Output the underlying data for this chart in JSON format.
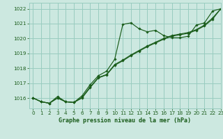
{
  "xlabel": "Graphe pression niveau de la mer (hPa)",
  "xlim": [
    -0.5,
    23
  ],
  "ylim": [
    1015.3,
    1022.4
  ],
  "yticks": [
    1016,
    1017,
    1018,
    1019,
    1020,
    1021,
    1022
  ],
  "xticks": [
    0,
    1,
    2,
    3,
    4,
    5,
    6,
    7,
    8,
    9,
    10,
    11,
    12,
    13,
    14,
    15,
    16,
    17,
    18,
    19,
    20,
    21,
    22,
    23
  ],
  "bg_color": "#cce8e0",
  "grid_color": "#99ccc0",
  "line_color": "#1a5c1a",
  "line1_x": [
    0,
    1,
    2,
    3,
    4,
    5,
    6,
    7,
    8,
    9,
    10,
    11,
    12,
    13,
    14,
    15,
    16,
    17,
    18,
    19,
    20,
    21,
    22,
    23
  ],
  "line1_y": [
    1016.0,
    1015.75,
    1015.65,
    1016.1,
    1015.75,
    1015.7,
    1016.15,
    1016.9,
    1017.5,
    1017.8,
    1018.6,
    1020.95,
    1021.05,
    1020.65,
    1020.45,
    1020.55,
    1020.2,
    1020.05,
    1020.05,
    1020.15,
    1020.9,
    1021.05,
    1021.85,
    1022.0
  ],
  "line2_x": [
    0,
    1,
    2,
    3,
    4,
    5,
    6,
    7,
    8,
    9,
    10,
    11,
    12,
    13,
    14,
    15,
    16,
    17,
    18,
    19,
    20,
    21,
    22,
    23
  ],
  "line2_y": [
    1016.0,
    1015.75,
    1015.65,
    1016.0,
    1015.75,
    1015.7,
    1016.0,
    1016.7,
    1017.35,
    1017.55,
    1018.2,
    1018.5,
    1018.85,
    1019.15,
    1019.45,
    1019.7,
    1019.95,
    1020.15,
    1020.25,
    1020.35,
    1020.55,
    1020.85,
    1021.3,
    1022.0
  ],
  "line3_x": [
    0,
    1,
    2,
    3,
    4,
    5,
    6,
    7,
    8,
    9,
    10,
    11,
    12,
    13,
    14,
    15,
    16,
    17,
    18,
    19,
    20,
    21,
    22,
    23
  ],
  "line3_y": [
    1016.0,
    1015.75,
    1015.65,
    1016.0,
    1015.75,
    1015.7,
    1016.05,
    1016.75,
    1017.38,
    1017.58,
    1018.25,
    1018.55,
    1018.9,
    1019.2,
    1019.5,
    1019.75,
    1020.0,
    1020.2,
    1020.3,
    1020.4,
    1020.6,
    1020.9,
    1021.38,
    1022.0
  ]
}
